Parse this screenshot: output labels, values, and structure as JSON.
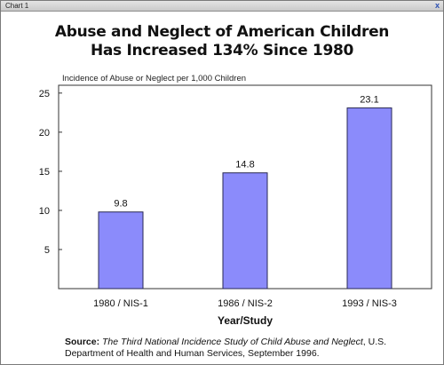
{
  "window": {
    "title": "Chart 1",
    "close_glyph": "x"
  },
  "heading": {
    "line1": "Abuse and Neglect of American Children",
    "line2": "Has Increased 134% Since 1980"
  },
  "chart_data": {
    "type": "bar",
    "title": "Abuse and Neglect of American Children Has Increased 134% Since 1980",
    "ylabel": "Incidence of Abuse or Neglect per 1,000 Children",
    "xlabel": "Year/Study",
    "categories": [
      "1980 / NIS-1",
      "1986 / NIS-2",
      "1993 / NIS-3"
    ],
    "values": [
      9.8,
      14.8,
      23.1
    ],
    "value_labels": [
      "9.8",
      "14.8",
      "23.1"
    ],
    "ylim": [
      0,
      26
    ],
    "yticks": [
      5,
      10,
      15,
      20,
      25
    ],
    "ytick_labels": [
      "5",
      "10",
      "15",
      "20",
      "25"
    ],
    "bar_color": "#8b8bfb",
    "grid": false
  },
  "source": {
    "label": "Source:",
    "title": "The Third National Incidence Study of Child Abuse and Neglect",
    "publisher": ", U.S. Department of Health and Human Services, September 1996."
  }
}
